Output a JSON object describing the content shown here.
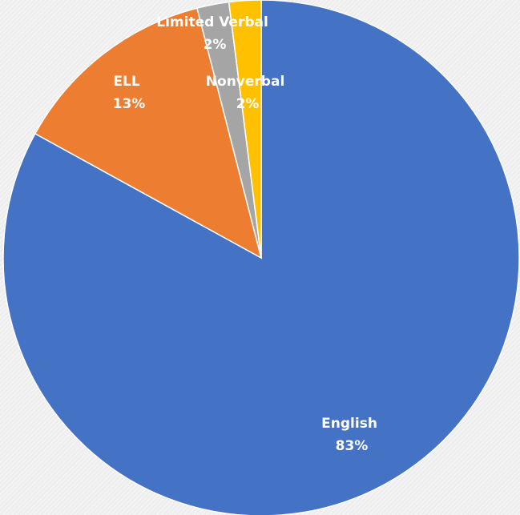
{
  "chart_data": {
    "type": "pie",
    "title": "",
    "start_angle_deg": 0,
    "direction": "clockwise",
    "slices": [
      {
        "label": "English",
        "percent_label": "83%",
        "value": 83,
        "color": "#4472c4"
      },
      {
        "label": "ELL",
        "percent_label": "13%",
        "value": 13,
        "color": "#ed7d31"
      },
      {
        "label": "Limited Verbal",
        "percent_label": "2%",
        "value": 2,
        "color": "#a5a5a5"
      },
      {
        "label": "Nonverbal",
        "percent_label": "2%",
        "value": 2,
        "color": "#ffc000"
      }
    ],
    "legend": "none",
    "data_labels": "category-and-percent"
  }
}
